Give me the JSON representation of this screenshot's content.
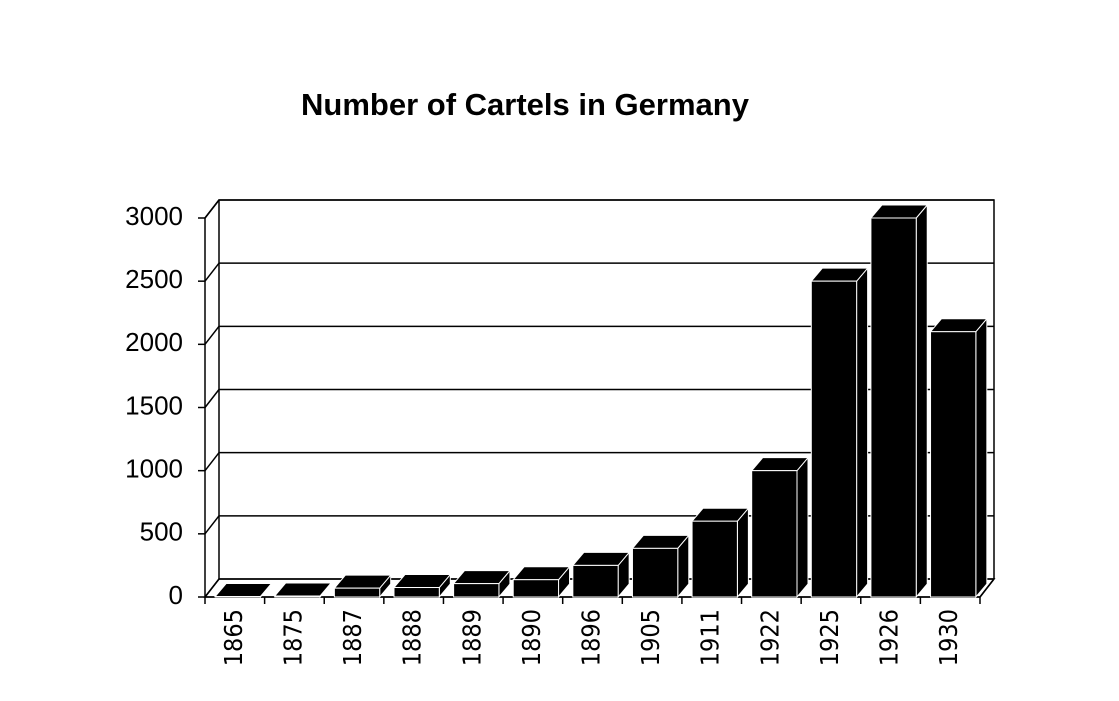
{
  "chart_data": {
    "type": "bar",
    "title": "Number of Cartels in Germany",
    "categories": [
      "1865",
      "1875",
      "1887",
      "1888",
      "1889",
      "1890",
      "1896",
      "1905",
      "1911",
      "1922",
      "1925",
      "1926",
      "1930"
    ],
    "values": [
      4,
      8,
      70,
      75,
      106,
      137,
      250,
      385,
      600,
      1000,
      2500,
      3000,
      2100
    ],
    "color": "#000000",
    "ylim": [
      0,
      3000
    ],
    "yticks": [
      0,
      500,
      1000,
      1500,
      2000,
      2500,
      3000
    ],
    "grid": true
  }
}
